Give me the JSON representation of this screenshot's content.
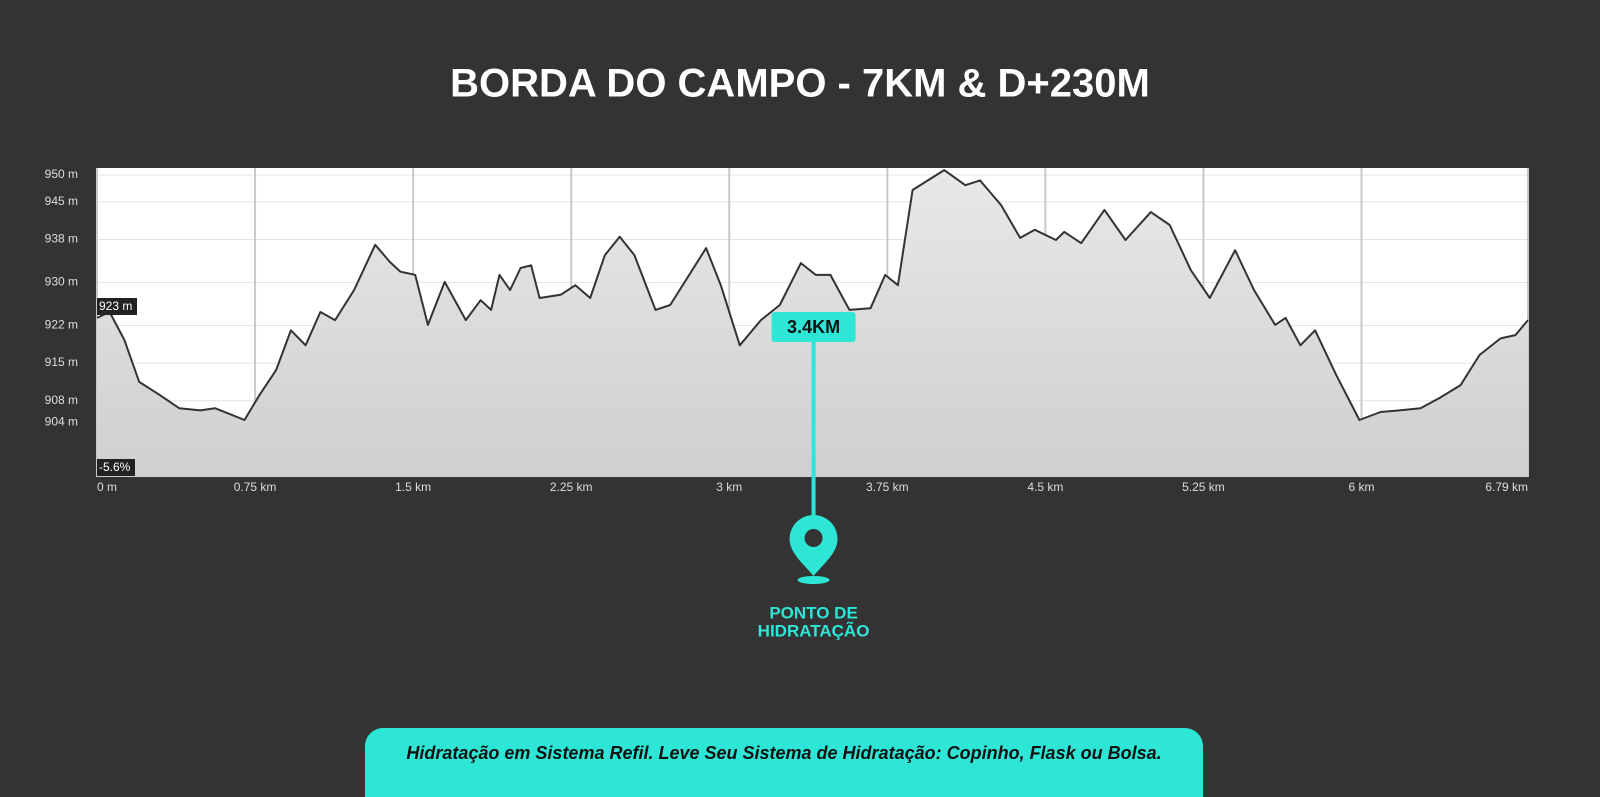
{
  "chart_data": {
    "type": "area",
    "title": "BORDA DO CAMPO - 7KM & D+230M",
    "x": [
      0,
      0.06,
      0.13,
      0.2,
      0.3,
      0.39,
      0.49,
      0.56,
      0.63,
      0.7,
      0.77,
      0.85,
      0.92,
      0.99,
      1.06,
      1.13,
      1.22,
      1.32,
      1.39,
      1.44,
      1.51,
      1.57,
      1.65,
      1.75,
      1.82,
      1.87,
      1.91,
      1.96,
      2.01,
      2.06,
      2.1,
      2.2,
      2.27,
      2.34,
      2.41,
      2.48,
      2.55,
      2.65,
      2.72,
      2.81,
      2.89,
      2.96,
      3.05,
      3.15,
      3.24,
      3.34,
      3.41,
      3.48,
      3.57,
      3.67,
      3.74,
      3.8,
      3.87,
      3.93,
      4.02,
      4.12,
      4.19,
      4.29,
      4.38,
      4.45,
      4.55,
      4.59,
      4.67,
      4.78,
      4.88,
      5.0,
      5.09,
      5.19,
      5.28,
      5.4,
      5.49,
      5.59,
      5.64,
      5.71,
      5.78,
      5.88,
      5.99,
      6.09,
      6.18,
      6.28,
      6.37,
      6.47,
      6.56,
      6.66,
      6.73,
      6.79
    ],
    "series": [
      {
        "color": "#333333",
        "values": [
          923.4,
          924.5,
          919.3,
          911.5,
          909,
          906.6,
          906.2,
          906.6,
          905.5,
          904.4,
          909,
          913.7,
          921.1,
          918.3,
          924.5,
          923,
          928.6,
          937,
          933.8,
          932,
          931.4,
          922.1,
          930.1,
          923,
          926.7,
          924.9,
          931.4,
          928.6,
          932.7,
          933.2,
          927.1,
          927.7,
          929.5,
          927.1,
          935.1,
          938.5,
          935.1,
          924.9,
          925.8,
          931.4,
          936.4,
          929.5,
          918.3,
          923,
          925.8,
          933.6,
          931.4,
          931.4,
          924.9,
          925.2,
          931.4,
          929.5,
          947.2,
          948.7,
          950.9,
          948.1,
          949,
          944.4,
          938.3,
          939.8,
          937.9,
          939.4,
          937.3,
          943.5,
          937.9,
          943.1,
          940.7,
          932.3,
          927.1,
          936,
          928.6,
          922.1,
          923.4,
          918.3,
          921.1,
          912.8,
          904.4,
          905.9,
          906.2,
          906.6,
          908.5,
          910.9,
          916.5,
          919.6,
          920.2,
          923
        ]
      }
    ],
    "xlim": [
      0,
      6.79
    ],
    "ylim": [
      893.8,
      951.3
    ],
    "xticks": [
      {
        "value": 0,
        "label": "0 m"
      },
      {
        "value": 0.75,
        "label": "0.75 km"
      },
      {
        "value": 1.5,
        "label": "1.5 km"
      },
      {
        "value": 2.25,
        "label": "2.25 km"
      },
      {
        "value": 3,
        "label": "3 km"
      },
      {
        "value": 3.75,
        "label": "3.75 km"
      },
      {
        "value": 4.5,
        "label": "4.5 km"
      },
      {
        "value": 5.25,
        "label": "5.25 km"
      },
      {
        "value": 6,
        "label": "6 km"
      },
      {
        "value": 6.79,
        "label": "6.79 km"
      }
    ],
    "yticks": [
      {
        "value": 950,
        "label": "950 m"
      },
      {
        "value": 945,
        "label": "945 m"
      },
      {
        "value": 938,
        "label": "938 m"
      },
      {
        "value": 930,
        "label": "930 m"
      },
      {
        "value": 922,
        "label": "922 m"
      },
      {
        "value": 915,
        "label": "915 m"
      },
      {
        "value": 908,
        "label": "908 m"
      },
      {
        "value": 904,
        "label": "904 m"
      }
    ],
    "grid": true,
    "start_label": "923 m",
    "grade_label": "-5.6%",
    "marker": {
      "x": 3.4,
      "label": "3.4KM",
      "note": [
        "PONTO DE",
        "HIDRATAÇÃO"
      ],
      "color": "#2ee6d6"
    },
    "footer": "Hidratação em Sistema Refil. Leve Seu Sistema de Hidratação: Copinho, Flask ou Bolsa."
  }
}
